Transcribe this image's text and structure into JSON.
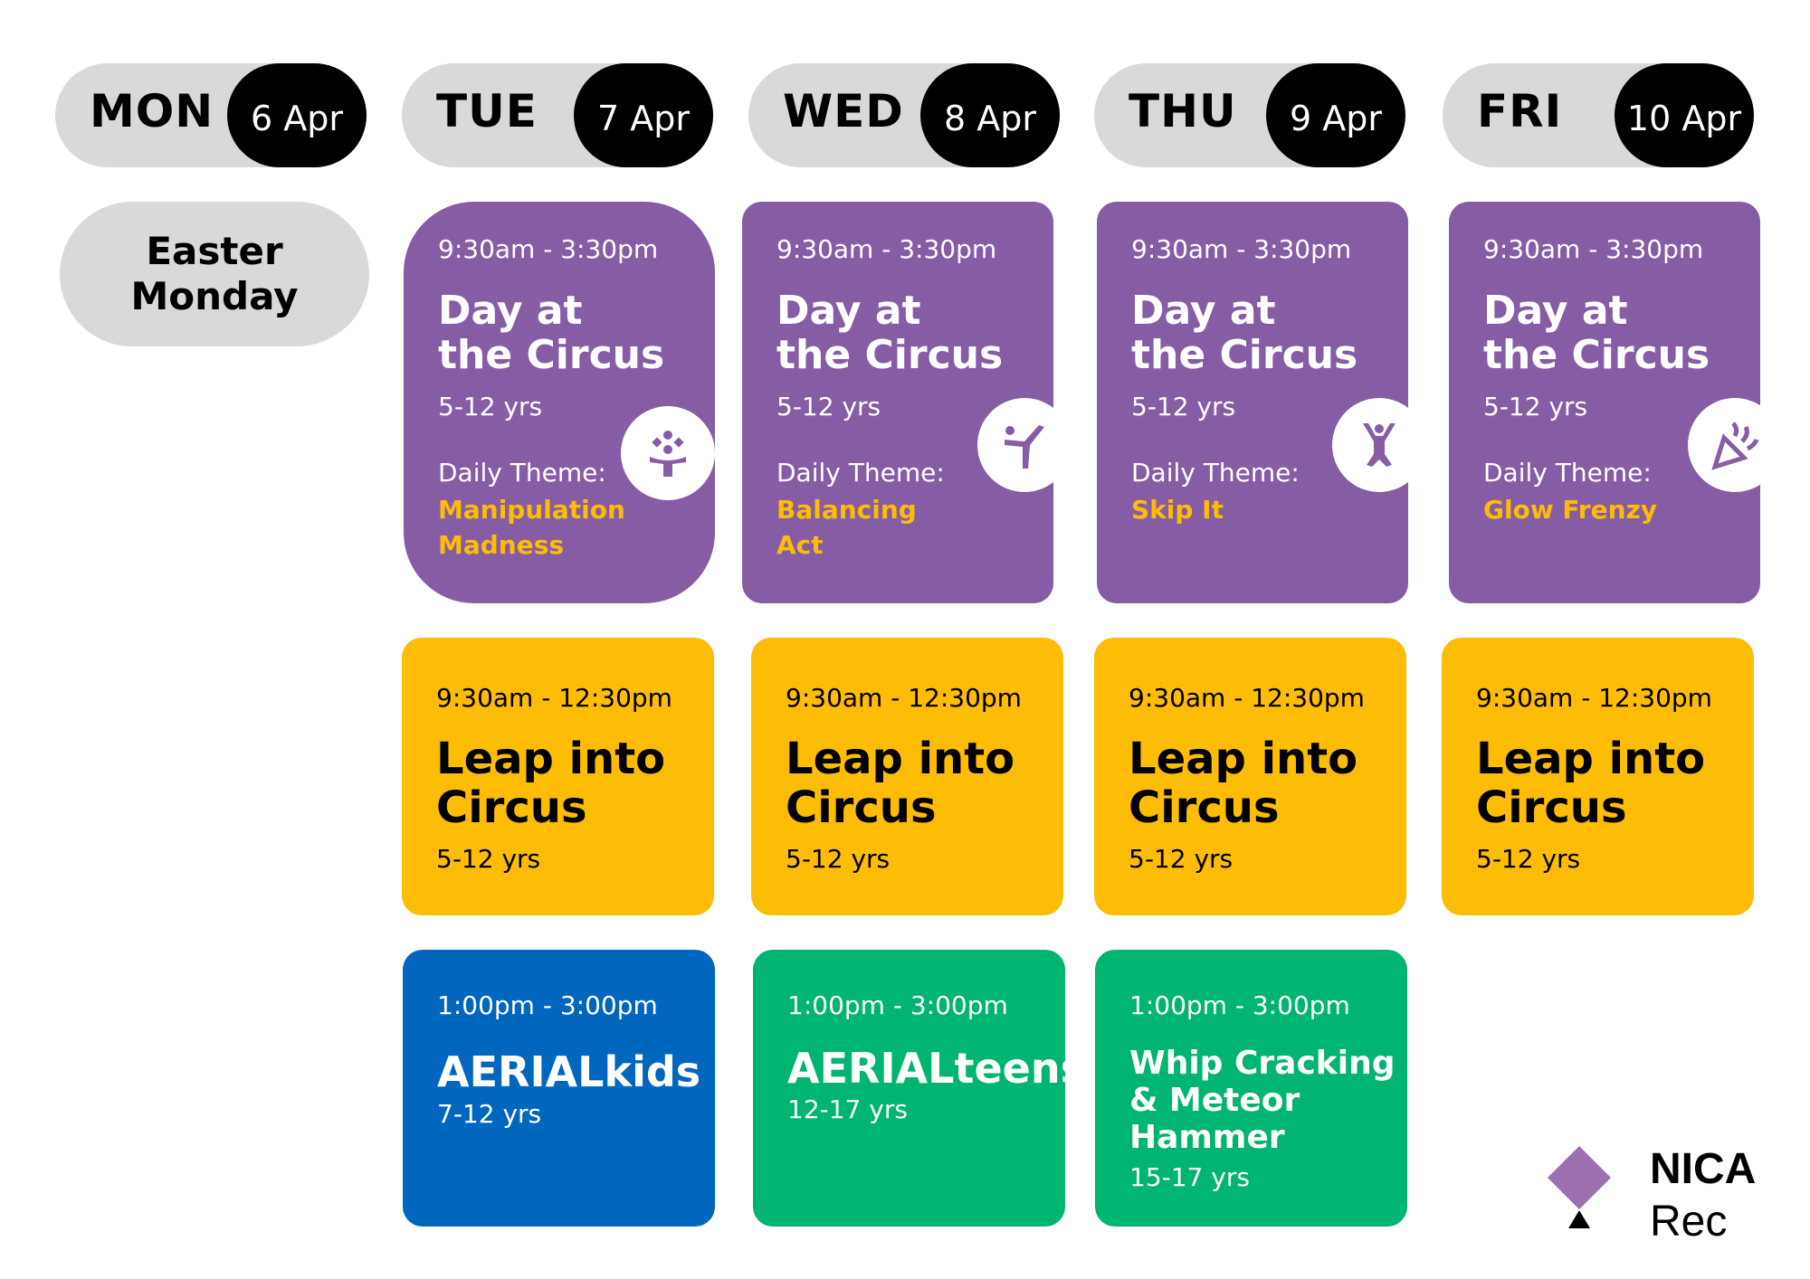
{
  "days": [
    {
      "name": "MON",
      "date": "6 Apr"
    },
    {
      "name": "TUE",
      "date": "7 Apr"
    },
    {
      "name": "WED",
      "date": "8 Apr"
    },
    {
      "name": "THU",
      "date": "9 Apr"
    },
    {
      "name": "FRI",
      "date": "10 Apr"
    }
  ],
  "holiday": {
    "line1": "Easter",
    "line2": "Monday"
  },
  "circus": {
    "time": "9:30am - 3:30pm",
    "title_line1": "Day at",
    "title_line2": "the Circus",
    "age": "5-12 yrs",
    "theme_label": "Daily Theme:",
    "themes": [
      {
        "line1": "Manipulation",
        "line2": "Madness",
        "icon": "juggling-icon"
      },
      {
        "line1": "Balancing",
        "line2": "Act",
        "icon": "balancing-icon"
      },
      {
        "line1": "Skip It",
        "line2": "",
        "icon": "jumping-icon"
      },
      {
        "line1": "Glow Frenzy",
        "line2": "",
        "icon": "party-popper-icon"
      }
    ]
  },
  "leap": {
    "time": "9:30am - 12:30pm",
    "title_line1": "Leap into",
    "title_line2": "Circus",
    "age": "5-12 yrs"
  },
  "afternoon": [
    {
      "time": "1:00pm - 3:00pm",
      "title": "AERIALkids",
      "age": "7-12 yrs",
      "color": "#0066be"
    },
    {
      "time": "1:00pm - 3:00pm",
      "title": "AERIALteens",
      "age": "12-17 yrs",
      "color": "#00b471"
    },
    {
      "time": "1:00pm - 3:00pm",
      "title_line1": "Whip Cracking",
      "title_line2": "& Meteor",
      "title_line3": "Hammer",
      "age": "15-17 yrs",
      "color": "#00b471"
    }
  ],
  "logo": {
    "line1": "NICA",
    "line2": "Rec"
  },
  "colors": {
    "purple": "#865da5",
    "yellow": "#fdbc05",
    "blue": "#0066be",
    "green": "#00b471",
    "header_gray": "#d9d9d9"
  }
}
